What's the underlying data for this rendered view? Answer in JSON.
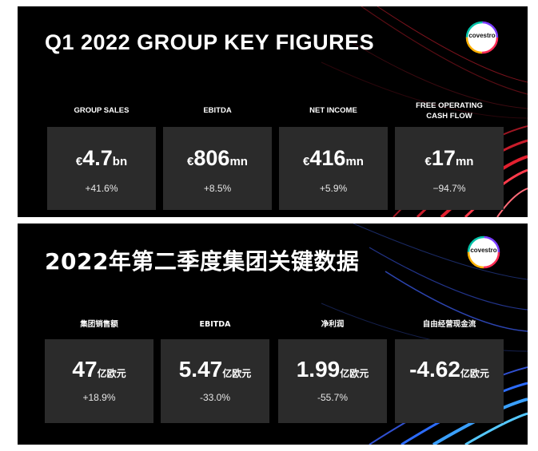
{
  "colors": {
    "panel_background": "#000000",
    "card_background": "#2b2b2b",
    "text": "#ffffff",
    "accent_red": "#e2202f",
    "accent_blue": "#2c6cff"
  },
  "english_panel": {
    "title": "Q1 2022 GROUP KEY FIGURES",
    "logo_text": "covestro",
    "metrics": [
      {
        "label": "GROUP SALES",
        "currency": "€",
        "amount": "4.7",
        "unit": "bn",
        "change": "+41.6%"
      },
      {
        "label": "EBITDA",
        "currency": "€",
        "amount": "806",
        "unit": "mn",
        "change": "+8.5%"
      },
      {
        "label": "NET INCOME",
        "currency": "€",
        "amount": "416",
        "unit": "mn",
        "change": "+5.9%"
      },
      {
        "label": "FREE OPERATING\nCASH FLOW",
        "currency": "€",
        "amount": "17",
        "unit": "mn",
        "change": "−94.7%"
      }
    ]
  },
  "chinese_panel": {
    "title": "2022年第二季度集团关键数据",
    "logo_text": "covestro",
    "metrics": [
      {
        "label": "集团销售额",
        "amount": "47",
        "unit": "亿欧元",
        "change": "+18.9%"
      },
      {
        "label": "EBITDA",
        "amount": "5.47",
        "unit": "亿欧元",
        "change": "-33.0%"
      },
      {
        "label": "净利润",
        "amount": "1.99",
        "unit": "亿欧元",
        "change": "-55.7%"
      },
      {
        "label": "自由经营现金流",
        "amount": "-4.62",
        "unit": "亿欧元",
        "change": ""
      }
    ]
  }
}
